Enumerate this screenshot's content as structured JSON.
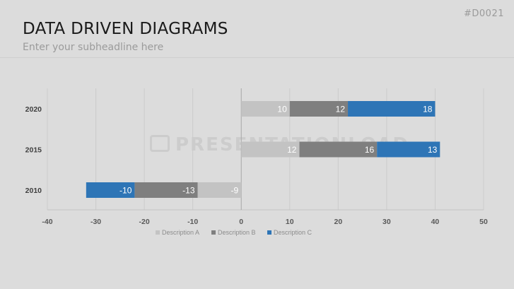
{
  "slide": {
    "id": "#D0021",
    "title": "DATA DRIVEN DIAGRAMS",
    "subtitle": "Enter your subheadline here",
    "watermark": "PRESENTATIONLOAD"
  },
  "chart_data": {
    "type": "bar",
    "orientation": "horizontal",
    "stacked": true,
    "categories": [
      "2020",
      "2015",
      "2010"
    ],
    "series": [
      {
        "name": "Description A",
        "color": "#c3c3c3",
        "values": [
          10,
          12,
          -9
        ]
      },
      {
        "name": "Description B",
        "color": "#7f7f7f",
        "values": [
          12,
          16,
          -13
        ]
      },
      {
        "name": "Description C",
        "color": "#2e75b6",
        "values": [
          18,
          13,
          -10
        ]
      }
    ],
    "xlim": [
      -40,
      50
    ],
    "xticks": [
      -40,
      -30,
      -20,
      -10,
      0,
      10,
      20,
      30,
      40,
      50
    ],
    "grid": "vertical",
    "legend": "bottom",
    "title": "",
    "xlabel": "",
    "ylabel": ""
  }
}
